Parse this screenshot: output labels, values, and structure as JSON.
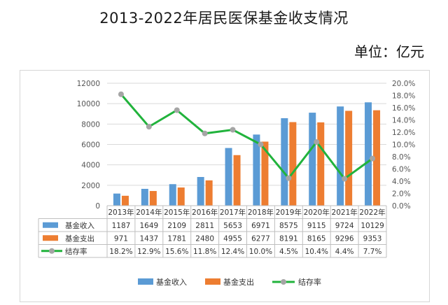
{
  "header": {
    "title": "2013-2022年居民医保基金收支情况",
    "unit": "单位：亿元"
  },
  "colors": {
    "income": "#5b9bd5",
    "expense": "#ed7d31",
    "rate": "#21b33c",
    "marker": "#a5a5a5",
    "grid": "#d9d9d9"
  },
  "chart_data": {
    "type": "bar",
    "categories": [
      "2013年",
      "2014年",
      "2015年",
      "2016年",
      "2017年",
      "2018年",
      "2019年",
      "2020年",
      "2021年",
      "2022年"
    ],
    "series": [
      {
        "name": "基金收入",
        "type": "bar",
        "axis": "left",
        "values": [
          1187,
          1649,
          2109,
          2811,
          5653,
          6971,
          8575,
          9115,
          9724,
          10129
        ]
      },
      {
        "name": "基金支出",
        "type": "bar",
        "axis": "left",
        "values": [
          971,
          1437,
          1781,
          2480,
          4955,
          6277,
          8191,
          8165,
          9296,
          9353
        ]
      },
      {
        "name": "结存率",
        "type": "line",
        "axis": "right",
        "values": [
          18.2,
          12.9,
          15.6,
          11.8,
          12.4,
          10.0,
          4.5,
          10.4,
          4.4,
          7.7
        ]
      }
    ],
    "table_labels": [
      "1187",
      "1649",
      "2109",
      "2811",
      "5653",
      "6971",
      "8575",
      "9115",
      "9724",
      "10129"
    ],
    "table_labels_expense": [
      "971",
      "1437",
      "1781",
      "2480",
      "4955",
      "6277",
      "8191",
      "8165",
      "9296",
      "9353"
    ],
    "table_labels_rate": [
      "18.2%",
      "12.9%",
      "15.6%",
      "11.8%",
      "12.4%",
      "10.0%",
      "4.5%",
      "10.4%",
      "4.4%",
      "7.7%"
    ],
    "y_left": {
      "min": 0,
      "max": 12000,
      "ticks": [
        0,
        2000,
        4000,
        6000,
        8000,
        10000,
        12000
      ]
    },
    "y_right": {
      "min": 0,
      "max": 20,
      "ticks": [
        "0.0%",
        "2.0%",
        "4.0%",
        "6.0%",
        "8.0%",
        "10.0%",
        "12.0%",
        "14.0%",
        "16.0%",
        "18.0%",
        "20.0%"
      ]
    },
    "grid": true,
    "legend_placement": "bottom"
  }
}
